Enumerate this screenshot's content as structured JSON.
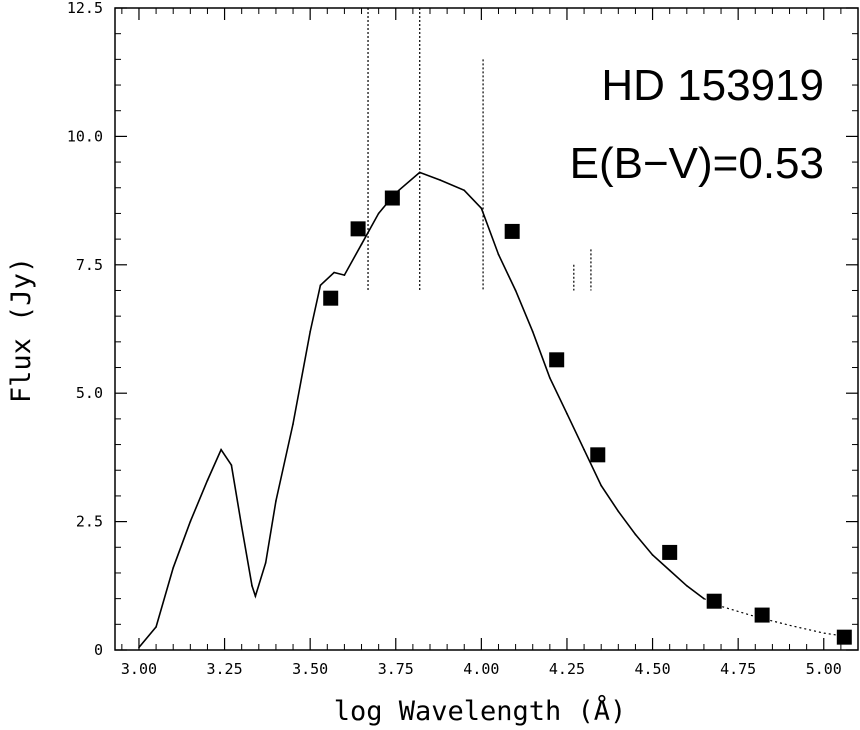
{
  "chart_data": {
    "type": "scatter",
    "xlabel": "log Wavelength (Å)",
    "ylabel": "Flux (Jy)",
    "xlim": [
      2.93,
      5.1
    ],
    "ylim": [
      0,
      12.5
    ],
    "x_ticks": [
      "3.00",
      "3.25",
      "3.50",
      "3.75",
      "4.00",
      "4.25",
      "4.50",
      "4.75",
      "5.00"
    ],
    "y_ticks": [
      "0",
      "2.5",
      "5.0",
      "7.5",
      "10.0",
      "12.5"
    ],
    "annotations": [
      "HD 153919",
      "E(B−V)=0.53"
    ],
    "grid": false,
    "series": [
      {
        "kind": "photometry",
        "marker": "filled-square",
        "points": [
          {
            "x": 3.56,
            "y": 6.85
          },
          {
            "x": 3.64,
            "y": 8.2
          },
          {
            "x": 3.74,
            "y": 8.8
          },
          {
            "x": 4.09,
            "y": 8.15
          },
          {
            "x": 4.22,
            "y": 5.65
          },
          {
            "x": 4.34,
            "y": 3.8
          },
          {
            "x": 4.55,
            "y": 1.9
          },
          {
            "x": 4.68,
            "y": 0.95
          },
          {
            "x": 4.82,
            "y": 0.68
          },
          {
            "x": 5.06,
            "y": 0.25
          }
        ]
      },
      {
        "kind": "model",
        "style": "solid",
        "points": [
          {
            "x": 3.0,
            "y": 0.05
          },
          {
            "x": 3.05,
            "y": 0.45
          },
          {
            "x": 3.1,
            "y": 1.6
          },
          {
            "x": 3.15,
            "y": 2.5
          },
          {
            "x": 3.2,
            "y": 3.3
          },
          {
            "x": 3.24,
            "y": 3.9
          },
          {
            "x": 3.27,
            "y": 3.6
          },
          {
            "x": 3.3,
            "y": 2.4
          },
          {
            "x": 3.33,
            "y": 1.25
          },
          {
            "x": 3.34,
            "y": 1.05
          },
          {
            "x": 3.37,
            "y": 1.7
          },
          {
            "x": 3.4,
            "y": 2.9
          },
          {
            "x": 3.45,
            "y": 4.4
          },
          {
            "x": 3.5,
            "y": 6.2
          },
          {
            "x": 3.53,
            "y": 7.1
          },
          {
            "x": 3.57,
            "y": 7.35
          },
          {
            "x": 3.6,
            "y": 7.3
          },
          {
            "x": 3.65,
            "y": 7.9
          },
          {
            "x": 3.7,
            "y": 8.5
          },
          {
            "x": 3.75,
            "y": 8.9
          },
          {
            "x": 3.82,
            "y": 9.3
          },
          {
            "x": 3.88,
            "y": 9.15
          },
          {
            "x": 3.95,
            "y": 8.95
          },
          {
            "x": 4.0,
            "y": 8.6
          },
          {
            "x": 4.05,
            "y": 7.7
          },
          {
            "x": 4.1,
            "y": 7.0
          },
          {
            "x": 4.15,
            "y": 6.2
          },
          {
            "x": 4.2,
            "y": 5.3
          },
          {
            "x": 4.25,
            "y": 4.6
          },
          {
            "x": 4.3,
            "y": 3.9
          },
          {
            "x": 4.35,
            "y": 3.2
          },
          {
            "x": 4.4,
            "y": 2.7
          },
          {
            "x": 4.45,
            "y": 2.25
          },
          {
            "x": 4.5,
            "y": 1.85
          },
          {
            "x": 4.55,
            "y": 1.55
          },
          {
            "x": 4.6,
            "y": 1.25
          },
          {
            "x": 4.65,
            "y": 1.0
          }
        ]
      },
      {
        "kind": "model-extension",
        "style": "dotted",
        "points": [
          {
            "x": 4.65,
            "y": 1.0
          },
          {
            "x": 4.7,
            "y": 0.85
          },
          {
            "x": 4.8,
            "y": 0.65
          },
          {
            "x": 4.9,
            "y": 0.48
          },
          {
            "x": 5.0,
            "y": 0.33
          },
          {
            "x": 5.08,
            "y": 0.25
          }
        ]
      },
      {
        "kind": "spectral-spikes",
        "style": "dotted",
        "points": [
          {
            "x": 3.669,
            "y": 12.5
          },
          {
            "x": 3.82,
            "y": 12.5
          },
          {
            "x": 4.005,
            "y": 11.5
          },
          {
            "x": 4.27,
            "y": 7.5
          },
          {
            "x": 4.32,
            "y": 7.8
          }
        ]
      }
    ]
  }
}
